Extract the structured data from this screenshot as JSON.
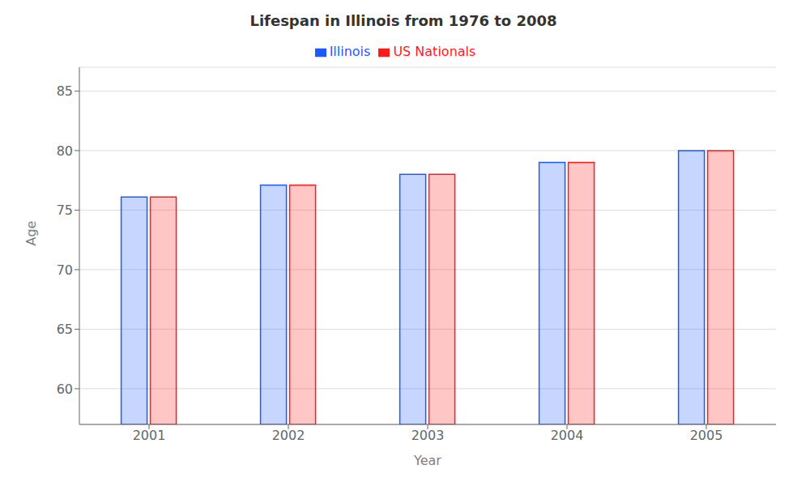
{
  "chart_data": {
    "type": "bar",
    "title": "Lifespan in Illinois from 1976 to 2008",
    "x_label": "Year",
    "y_label": "Age",
    "categories": [
      "2001",
      "2002",
      "2003",
      "2004",
      "2005"
    ],
    "series": [
      {
        "name": "Illinois",
        "color": "#1a5aff",
        "values": [
          76.1,
          77.1,
          78.0,
          79.0,
          80.0
        ]
      },
      {
        "name": "US Nationals",
        "color": "#ff1a1a",
        "values": [
          76.1,
          77.1,
          78.0,
          79.0,
          80.0
        ]
      }
    ],
    "ylim": [
      57,
      87
    ],
    "yticks": [
      60,
      65,
      70,
      75,
      80,
      85
    ],
    "grid": true,
    "legend": "top"
  }
}
